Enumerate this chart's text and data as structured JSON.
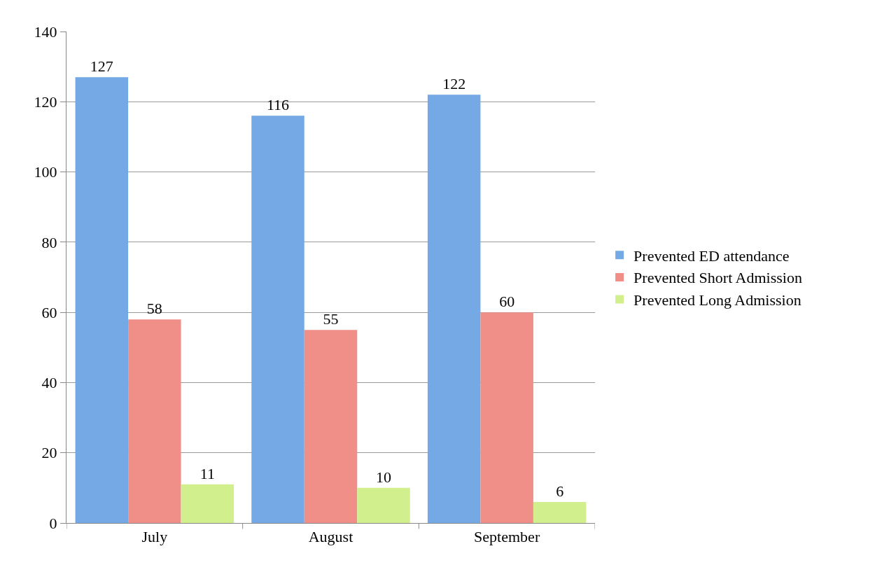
{
  "chart_data": {
    "type": "bar",
    "categories": [
      "July",
      "August",
      "September"
    ],
    "series": [
      {
        "name": "Prevented ED attendance",
        "color": "#74a9e6",
        "values": [
          127,
          116,
          122
        ]
      },
      {
        "name": "Prevented Short Admission",
        "color": "#f08e88",
        "values": [
          58,
          55,
          60
        ]
      },
      {
        "name": "Prevented Long Admission",
        "color": "#d2ef8e",
        "values": [
          11,
          10,
          6
        ]
      }
    ],
    "ylim": [
      0,
      140
    ],
    "yticks": [
      0,
      20,
      40,
      60,
      80,
      100,
      120,
      140
    ],
    "grid": "y",
    "legend": "right",
    "data_labels": true
  }
}
